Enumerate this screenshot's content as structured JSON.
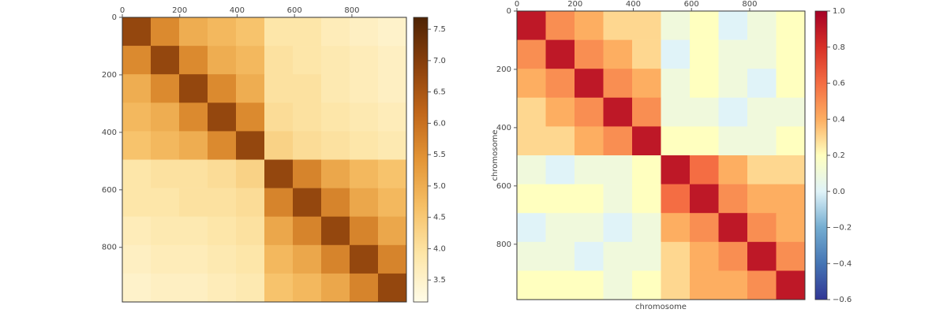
{
  "chart_data": [
    {
      "type": "heatmap",
      "bins": [
        0,
        99,
        198,
        297,
        396,
        495,
        594,
        693,
        792,
        891,
        990
      ],
      "xlim": [
        0,
        990
      ],
      "ylim": [
        0,
        990
      ],
      "y_inverted": true,
      "x_axis_top": true,
      "xticks": [
        0,
        200,
        400,
        600,
        800
      ],
      "yticks": [
        0,
        200,
        400,
        600,
        800
      ],
      "values": [
        [
          6.8,
          5.6,
          5.0,
          4.8,
          4.6,
          3.9,
          3.9,
          3.7,
          3.6,
          3.5
        ],
        [
          5.6,
          6.8,
          5.6,
          5.0,
          4.8,
          4.0,
          3.9,
          3.8,
          3.7,
          3.6
        ],
        [
          5.0,
          5.6,
          6.8,
          5.6,
          5.0,
          4.0,
          4.0,
          3.8,
          3.7,
          3.6
        ],
        [
          4.8,
          5.0,
          5.6,
          6.8,
          5.6,
          4.1,
          4.0,
          3.9,
          3.8,
          3.7
        ],
        [
          4.6,
          4.8,
          5.0,
          5.6,
          6.8,
          4.3,
          4.1,
          4.0,
          3.9,
          3.8
        ],
        [
          3.9,
          4.0,
          4.0,
          4.1,
          4.3,
          6.8,
          5.7,
          5.1,
          4.8,
          4.6
        ],
        [
          3.9,
          3.9,
          4.0,
          4.0,
          4.1,
          5.7,
          6.8,
          5.7,
          5.1,
          4.8
        ],
        [
          3.7,
          3.8,
          3.8,
          3.9,
          4.0,
          5.1,
          5.7,
          6.8,
          5.7,
          5.1
        ],
        [
          3.6,
          3.7,
          3.7,
          3.8,
          3.9,
          4.8,
          5.1,
          5.7,
          6.8,
          5.7
        ],
        [
          3.5,
          3.6,
          3.6,
          3.7,
          3.8,
          4.6,
          4.8,
          5.1,
          5.7,
          6.8
        ]
      ],
      "colorbar": {
        "lim": [
          3.15,
          7.69
        ],
        "ticks": [
          3.5,
          {
            "value": 4,
            "label": "4.0"
          },
          4.5,
          {
            "value": 5,
            "label": "5.0"
          },
          5.5,
          {
            "value": 6,
            "label": "6.0"
          },
          6.5,
          {
            "value": 7,
            "label": "7.0"
          },
          7.5
        ],
        "colors": [
          "#fffce8",
          "#fde6a8",
          "#f6c067",
          "#e39536",
          "#c0661a",
          "#8a400c",
          "#4e2304"
        ]
      }
    },
    {
      "type": "heatmap",
      "bins": [
        0,
        99,
        198,
        297,
        396,
        495,
        594,
        693,
        792,
        891,
        990
      ],
      "xlim": [
        0,
        990
      ],
      "ylim": [
        0,
        990
      ],
      "y_inverted": true,
      "x_axis_top": true,
      "xticks": [
        0,
        200,
        400,
        600,
        800
      ],
      "yticks": [
        0,
        200,
        400,
        600,
        800
      ],
      "xlabel": "chromosome",
      "ylabel": "chromosome",
      "values": [
        [
          0.9,
          0.5,
          0.4,
          0.3,
          0.3,
          0.1,
          0.2,
          0.0,
          0.1,
          0.2
        ],
        [
          0.5,
          0.9,
          0.5,
          0.4,
          0.3,
          0.0,
          0.2,
          0.1,
          0.1,
          0.2
        ],
        [
          0.4,
          0.5,
          0.9,
          0.5,
          0.4,
          0.1,
          0.2,
          0.1,
          0.0,
          0.2
        ],
        [
          0.3,
          0.4,
          0.5,
          0.9,
          0.5,
          0.1,
          0.1,
          0.0,
          0.1,
          0.1
        ],
        [
          0.3,
          0.3,
          0.4,
          0.5,
          0.9,
          0.2,
          0.2,
          0.1,
          0.1,
          0.2
        ],
        [
          0.1,
          0.0,
          0.1,
          0.1,
          0.2,
          0.9,
          0.6,
          0.4,
          0.3,
          0.3
        ],
        [
          0.2,
          0.2,
          0.2,
          0.1,
          0.2,
          0.6,
          0.9,
          0.5,
          0.4,
          0.4
        ],
        [
          0.0,
          0.1,
          0.1,
          0.0,
          0.1,
          0.4,
          0.5,
          0.9,
          0.5,
          0.4
        ],
        [
          0.1,
          0.1,
          0.0,
          0.1,
          0.1,
          0.3,
          0.4,
          0.5,
          0.9,
          0.5
        ],
        [
          0.2,
          0.2,
          0.2,
          0.1,
          0.2,
          0.3,
          0.4,
          0.4,
          0.5,
          0.9
        ]
      ],
      "colorbar": {
        "lim": [
          -0.6,
          1.0
        ],
        "ticks": [
          {
            "value": -0.6,
            "label": "−0.6"
          },
          {
            "value": -0.4,
            "label": "−0.4"
          },
          {
            "value": -0.2,
            "label": "−0.2"
          },
          {
            "value": 0,
            "label": "0.0"
          },
          0.2,
          0.4,
          0.6,
          0.8,
          {
            "value": 1,
            "label": "1.0"
          }
        ],
        "colors": [
          "#313695",
          "#4575b4",
          "#74add1",
          "#e0f3f8",
          "#ffffbf",
          "#fdae61",
          "#f46d43",
          "#d73027",
          "#a50026"
        ]
      }
    }
  ]
}
